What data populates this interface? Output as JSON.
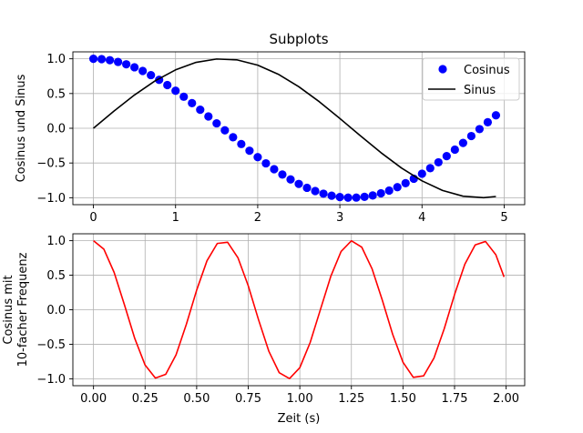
{
  "figure": {
    "background": "#ffffff"
  },
  "chart_data": [
    {
      "type": "line",
      "title": "Subplots",
      "ylabel": "Cosinus und Sinus",
      "xlabel": "",
      "xlim": [
        -0.25,
        5.25
      ],
      "ylim": [
        -1.1,
        1.1
      ],
      "xticks": [
        0,
        1,
        2,
        3,
        4,
        5
      ],
      "xtick_labels": [
        "0",
        "1",
        "2",
        "3",
        "4",
        "5"
      ],
      "yticks": [
        1.0,
        0.5,
        0.0,
        -0.5,
        -1.0
      ],
      "ytick_labels": [
        "1.0",
        "0.5",
        "0.0",
        "−0.5",
        "−1.0"
      ],
      "grid": true,
      "legend": "top-right",
      "series": [
        {
          "name": "Cosinus",
          "style": "markers",
          "color": "#0000ff",
          "x": [
            0.0,
            0.1,
            0.2,
            0.3,
            0.4,
            0.5,
            0.6,
            0.7,
            0.8,
            0.9,
            1.0,
            1.1,
            1.2,
            1.3,
            1.4,
            1.5,
            1.6,
            1.7,
            1.8,
            1.9,
            2.0,
            2.1,
            2.2,
            2.3,
            2.4,
            2.5,
            2.6,
            2.7,
            2.8,
            2.9,
            3.0,
            3.1,
            3.2,
            3.3,
            3.4,
            3.5,
            3.6,
            3.7,
            3.8,
            3.9,
            4.0,
            4.1,
            4.2,
            4.3,
            4.4,
            4.5,
            4.6,
            4.7,
            4.8,
            4.9
          ],
          "y": [
            1.0,
            0.995,
            0.98,
            0.955,
            0.921,
            0.878,
            0.825,
            0.765,
            0.697,
            0.622,
            0.54,
            0.454,
            0.362,
            0.267,
            0.17,
            0.071,
            -0.029,
            -0.129,
            -0.227,
            -0.323,
            -0.416,
            -0.505,
            -0.589,
            -0.666,
            -0.737,
            -0.801,
            -0.857,
            -0.904,
            -0.942,
            -0.971,
            -0.99,
            -0.999,
            -0.998,
            -0.987,
            -0.967,
            -0.936,
            -0.897,
            -0.848,
            -0.791,
            -0.726,
            -0.654,
            -0.575,
            -0.49,
            -0.401,
            -0.307,
            -0.211,
            -0.112,
            -0.012,
            0.087,
            0.187
          ]
        },
        {
          "name": "Sinus",
          "style": "line",
          "color": "#000000",
          "x": [
            0.0,
            0.25,
            0.5,
            0.75,
            1.0,
            1.25,
            1.5,
            1.75,
            2.0,
            2.25,
            2.5,
            2.75,
            3.0,
            3.25,
            3.5,
            3.75,
            4.0,
            4.25,
            4.5,
            4.75,
            4.9
          ],
          "y": [
            0.0,
            0.247,
            0.479,
            0.682,
            0.841,
            0.949,
            0.997,
            0.984,
            0.909,
            0.778,
            0.598,
            0.382,
            0.141,
            -0.108,
            -0.351,
            -0.572,
            -0.757,
            -0.895,
            -0.978,
            -0.999,
            -0.982
          ]
        }
      ]
    },
    {
      "type": "line",
      "title": "",
      "ylabel": "Cosinus mit\n10-facher Frequenz",
      "ylabel_lines": [
        "Cosinus mit",
        "10-facher Frequenz"
      ],
      "xlabel": "Zeit (s)",
      "xlim": [
        -0.1,
        2.09
      ],
      "ylim": [
        -1.1,
        1.1
      ],
      "xticks": [
        0.0,
        0.25,
        0.5,
        0.75,
        1.0,
        1.25,
        1.5,
        1.75,
        2.0
      ],
      "xtick_labels": [
        "0.00",
        "0.25",
        "0.50",
        "0.75",
        "1.00",
        "1.25",
        "1.50",
        "1.75",
        "2.00"
      ],
      "yticks": [
        1.0,
        0.5,
        0.0,
        -0.5,
        -1.0
      ],
      "ytick_labels": [
        "1.0",
        "0.5",
        "0.0",
        "−0.5",
        "−1.0"
      ],
      "grid": true,
      "series": [
        {
          "style": "line",
          "color": "#ff0000",
          "x": [
            0.0,
            0.05,
            0.1,
            0.15,
            0.2,
            0.25,
            0.3,
            0.35,
            0.4,
            0.45,
            0.5,
            0.55,
            0.6,
            0.65,
            0.7,
            0.75,
            0.8,
            0.85,
            0.9,
            0.95,
            1.0,
            1.05,
            1.1,
            1.15,
            1.2,
            1.25,
            1.3,
            1.35,
            1.4,
            1.45,
            1.5,
            1.55,
            1.6,
            1.65,
            1.7,
            1.75,
            1.8,
            1.85,
            1.9,
            1.95,
            1.99
          ],
          "y": [
            1.0,
            0.878,
            0.54,
            0.071,
            -0.416,
            -0.801,
            -0.99,
            -0.936,
            -0.654,
            -0.211,
            0.284,
            0.709,
            0.96,
            0.977,
            0.754,
            0.347,
            -0.146,
            -0.602,
            -0.911,
            -0.997,
            -0.839,
            -0.476,
            0.004,
            0.483,
            0.844,
            0.998,
            0.907,
            0.594,
            0.136,
            -0.356,
            -0.76,
            -0.979,
            -0.958,
            -0.701,
            -0.275,
            0.22,
            0.66,
            0.939,
            0.989,
            0.797,
            0.475
          ]
        }
      ]
    }
  ]
}
